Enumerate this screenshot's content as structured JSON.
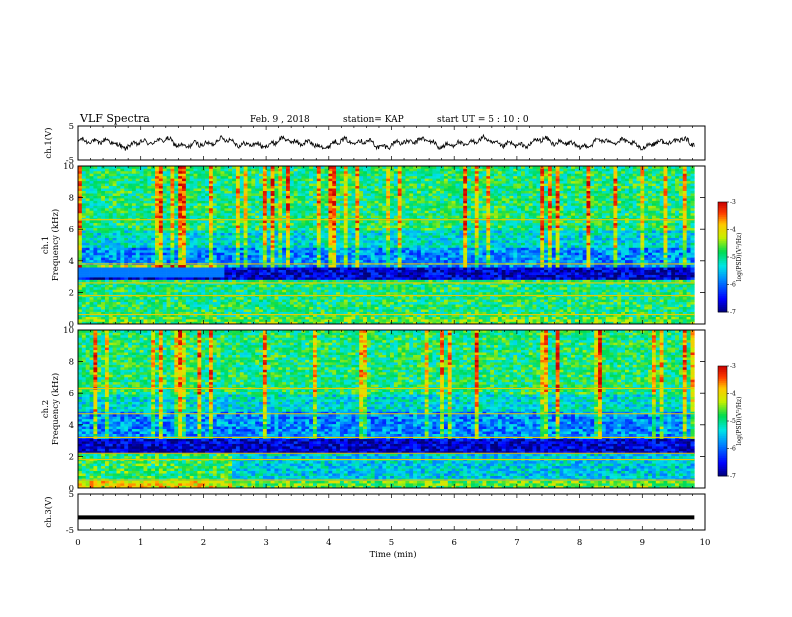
{
  "header": {
    "title": "VLF Spectra",
    "date": "Feb. 9 , 2018",
    "station": "station= KAP",
    "start": "start  UT =   5  : 10 : 0"
  },
  "chart_data": [
    {
      "type": "line",
      "ylabel": "ch.1(V)",
      "ylim": [
        -5,
        5
      ],
      "y_ticks": [
        "5",
        "-5"
      ],
      "xlim": [
        0,
        10
      ],
      "t_end": 9.83,
      "description_free_values": {
        "mean": 0.0,
        "amplitude_approx": 1.5
      }
    },
    {
      "type": "heatmap",
      "channel": "ch.1",
      "ylabel": "Frequency  (kHz)",
      "ylabel_ch": "ch.1",
      "ylim": [
        0,
        10
      ],
      "y_ticks": [
        "0",
        "2",
        "4",
        "6",
        "8",
        "10"
      ],
      "xlim": [
        0,
        10
      ],
      "colorbar": {
        "label": "log(PSD)(V²/Hz)",
        "range": [
          -7,
          -3
        ],
        "ticks": [
          "-3",
          "-4",
          "-5",
          "-6",
          "-7"
        ]
      },
      "dark_band_khz": [
        2.8,
        3.6
      ]
    },
    {
      "type": "heatmap",
      "channel": "ch.2",
      "ylabel": "Frequency  (kHz)",
      "ylabel_ch": "ch.2",
      "ylim": [
        0,
        10
      ],
      "y_ticks": [
        "0",
        "2",
        "4",
        "6",
        "8",
        "10"
      ],
      "xlim": [
        0,
        10
      ],
      "colorbar": {
        "label": "log(PSD)(V²/Hz)",
        "range": [
          -7,
          -3
        ],
        "ticks": [
          "-3",
          "-4",
          "-5",
          "-6",
          "-7"
        ]
      },
      "dark_band_khz": [
        2.2,
        3.2
      ]
    },
    {
      "type": "line",
      "ylabel": "ch.3(V)",
      "ylim": [
        -5,
        5
      ],
      "y_ticks": [
        "5",
        "-5"
      ],
      "xlim": [
        0,
        10
      ],
      "t_end": 9.83,
      "constant_value": -1.5
    }
  ],
  "x_axis": {
    "label": "Time  (min)",
    "ticks": [
      "0",
      "1",
      "2",
      "3",
      "4",
      "5",
      "6",
      "7",
      "8",
      "9",
      "10"
    ]
  }
}
